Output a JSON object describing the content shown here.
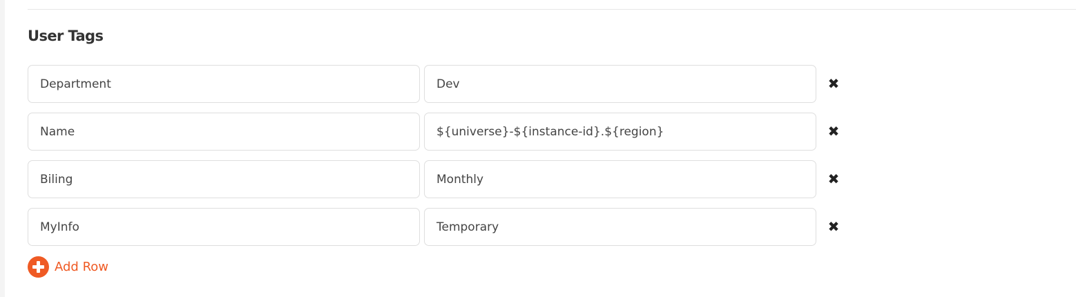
{
  "section": {
    "title": "User Tags"
  },
  "tags": [
    {
      "key": "Department",
      "value": "Dev"
    },
    {
      "key": "Name",
      "value": "${universe}-${instance-id}.${region}"
    },
    {
      "key": "Biling",
      "value": "Monthly"
    },
    {
      "key": "MyInfo",
      "value": "Temporary"
    }
  ],
  "icons": {
    "remove": "close-icon",
    "add": "plus-circle-icon"
  },
  "remove_glyph": "✖",
  "add_row_label": "Add Row",
  "colors": {
    "accent": "#ef5a24"
  }
}
